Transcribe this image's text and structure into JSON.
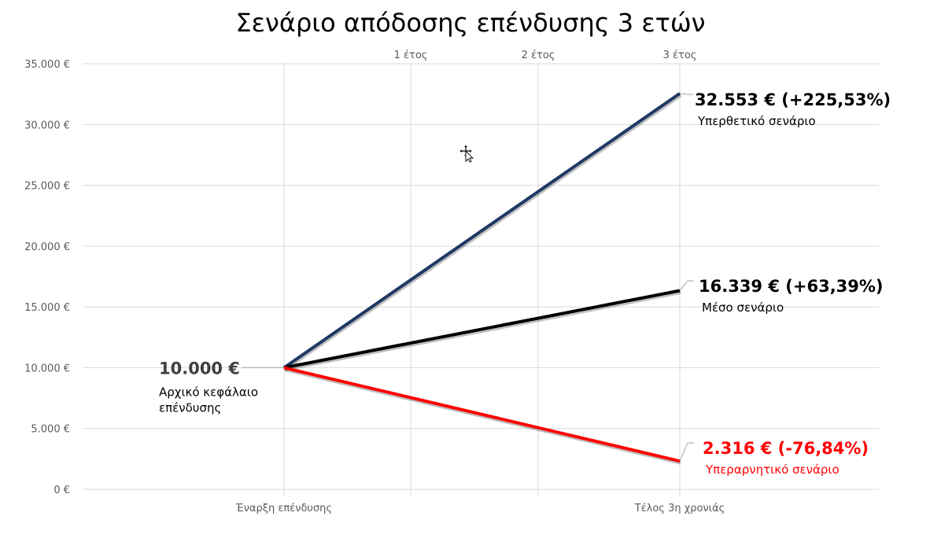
{
  "chart_data": {
    "type": "line",
    "title": "Σενάριο απόδοσης επένδυσης 3 ετών",
    "categories": [
      "Έναρξη επένδυσης",
      "Τέλος 3η χρονιάς"
    ],
    "top_labels": [
      "1 έτος",
      "2 έτος",
      "3 έτος"
    ],
    "ylim": [
      0,
      35000
    ],
    "yticks": [
      "0 €",
      "5.000 €",
      "10.000 €",
      "15.000 €",
      "20.000 €",
      "25.000 €",
      "30.000 €",
      "35.000 €"
    ],
    "grid": true,
    "start": {
      "value": 10000,
      "label": "10.000 €",
      "caption_lines": [
        "Αρχικό κεφάλαιο",
        "επένδυσης"
      ],
      "color": "#404040"
    },
    "series": [
      {
        "name": "Υπερθετικό σενάριο",
        "values": [
          10000,
          32553
        ],
        "label": "32.553 € (+225,53%)",
        "color": "#1f3864",
        "label_color": "#000000"
      },
      {
        "name": "Μέσο σενάριο",
        "values": [
          10000,
          16339
        ],
        "label": "16.339 € (+63,39%)",
        "color": "#000000",
        "label_color": "#000000"
      },
      {
        "name": "Υπεραρνητικό σενάριο",
        "values": [
          10000,
          2316
        ],
        "label": "2.316 € (-76,84%)",
        "color": "#ff0000",
        "label_color": "#ff0000"
      }
    ]
  },
  "cursor_icon": "move-cursor-icon"
}
